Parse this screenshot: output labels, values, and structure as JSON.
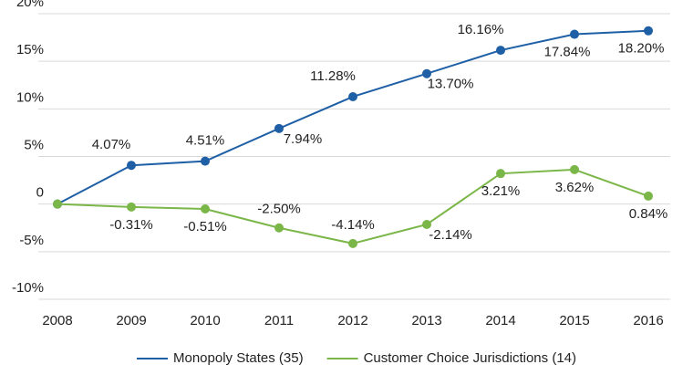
{
  "chart_data": {
    "type": "line",
    "categories": [
      "2008",
      "2009",
      "2010",
      "2011",
      "2012",
      "2013",
      "2014",
      "2015",
      "2016"
    ],
    "series": [
      {
        "name": "Monopoly States (35)",
        "color": "#1f5fa6",
        "values": [
          0,
          4.07,
          4.51,
          7.94,
          11.28,
          13.7,
          16.16,
          17.84,
          18.2
        ],
        "value_labels": [
          null,
          "4.07%",
          "4.51%",
          "7.94%",
          "11.28%",
          "13.70%",
          "16.16%",
          "17.84%",
          "18.20%"
        ]
      },
      {
        "name": "Customer Choice Jurisdictions (14)",
        "color": "#7ab648",
        "values": [
          0,
          -0.31,
          -0.51,
          -2.5,
          -4.14,
          -2.14,
          3.21,
          3.62,
          0.84
        ],
        "value_labels": [
          null,
          "-0.31%",
          "-0.51%",
          "-2.50%",
          "-4.14%",
          "-2.14%",
          "3.21%",
          "3.62%",
          "0.84%"
        ]
      }
    ],
    "ylim": [
      -10,
      20
    ],
    "yticks": [
      {
        "value": -10,
        "label": "-10%"
      },
      {
        "value": -5,
        "label": "-5%"
      },
      0,
      {
        "value": 5,
        "label": "5%"
      },
      {
        "value": 10,
        "label": "10%"
      },
      {
        "value": 15,
        "label": "15%"
      },
      {
        "value": 20,
        "label": "20%"
      }
    ],
    "grid": true,
    "legend": "bottom"
  }
}
